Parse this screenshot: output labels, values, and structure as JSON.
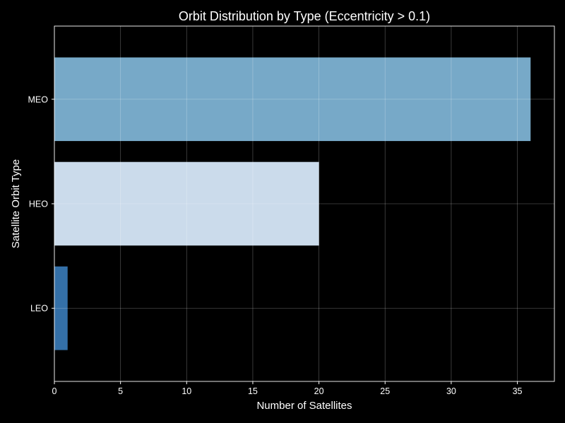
{
  "chart_data": {
    "type": "bar",
    "orientation": "horizontal",
    "title": "Orbit Distribution by Type (Eccentricity > 0.1)",
    "xlabel": "Number of Satellites",
    "ylabel": "Satellite Orbit Type",
    "categories": [
      "LEO",
      "HEO",
      "MEO"
    ],
    "values": [
      1,
      20,
      36
    ],
    "colors": [
      "#3470a8",
      "#cbdbeb",
      "#77a9c8"
    ],
    "xlim": [
      0,
      37.8
    ],
    "xticks": [
      0,
      5,
      10,
      15,
      20,
      25,
      30,
      35
    ],
    "grid": true,
    "background": "#000000",
    "text_color": "#ffffff"
  }
}
